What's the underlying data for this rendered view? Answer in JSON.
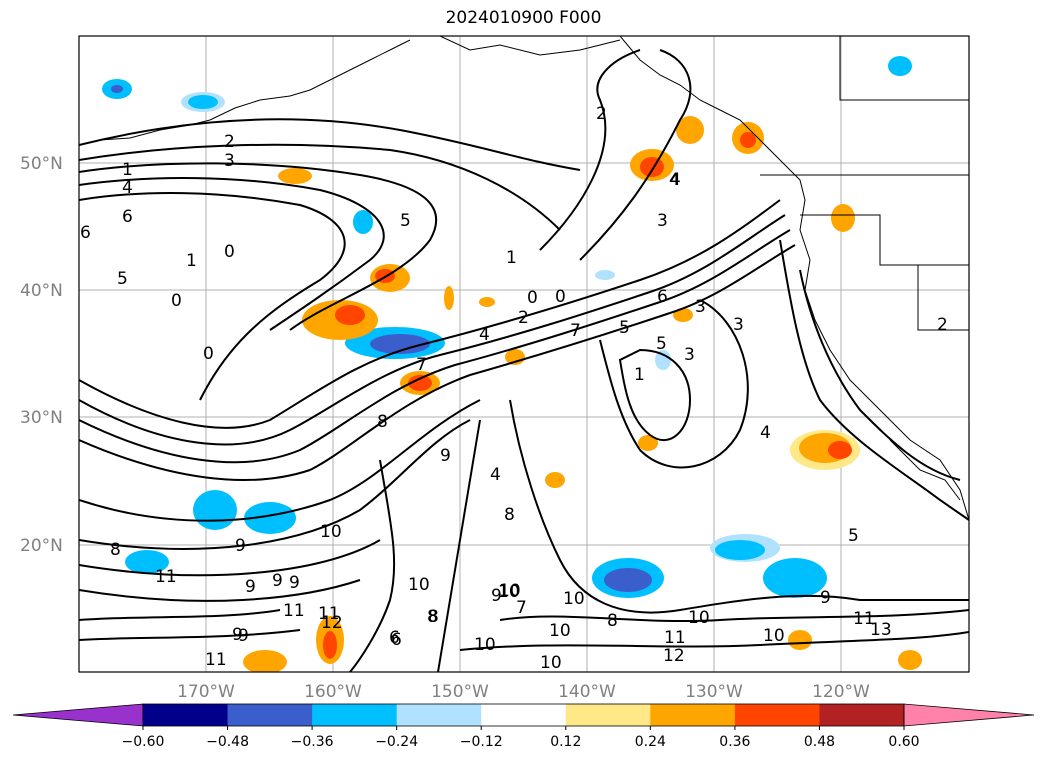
{
  "title": "2024010900 F000",
  "lat_ticks": [
    "50°N",
    "40°N",
    "30°N",
    "20°N"
  ],
  "lon_ticks": [
    "170°W",
    "160°W",
    "150°W",
    "140°W",
    "130°W",
    "120°W"
  ],
  "colorbar": {
    "levels": [
      "−0.60",
      "−0.48",
      "−0.36",
      "−0.24",
      "−0.12",
      "0.12",
      "0.24",
      "0.36",
      "0.48",
      "0.60"
    ],
    "colors": [
      "#9932cc",
      "#00008b",
      "#3a5fcd",
      "#00bfff",
      "#b0e2ff",
      "#ffffff",
      "#fee888",
      "#ffa500",
      "#ff4500",
      "#b22222",
      "#ff82ab"
    ],
    "extend": "both"
  },
  "contour_labels": [
    "2",
    "3",
    "1",
    "4",
    "6",
    "0",
    "5",
    "1",
    "0",
    "0",
    "2",
    "4",
    "5",
    "1",
    "0",
    "0",
    "2",
    "4",
    "7",
    "7",
    "5",
    "6",
    "3",
    "3",
    "1",
    "2",
    "6",
    "4",
    "3",
    "3",
    "5",
    "4",
    "8",
    "8",
    "9",
    "10",
    "9",
    "8",
    "8",
    "11",
    "9",
    "9",
    "11",
    "11",
    "12",
    "10",
    "9",
    "10",
    "7",
    "10",
    "8",
    "9",
    "10",
    "10",
    "11",
    "10",
    "12",
    "10",
    "9",
    "11",
    "13",
    "6",
    "9",
    "11",
    "9",
    "8",
    "6",
    "10",
    "10",
    "5",
    "4"
  ]
}
